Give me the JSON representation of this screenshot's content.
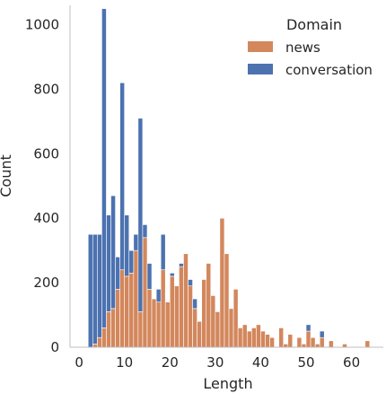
{
  "chart_data": {
    "type": "bar",
    "stacked": true,
    "xlabel": "Length",
    "ylabel": "Count",
    "xlim": [
      -2,
      67
    ],
    "ylim": [
      0,
      1060
    ],
    "xticks": [
      0,
      10,
      20,
      30,
      40,
      50,
      60
    ],
    "yticks": [
      0,
      200,
      400,
      600,
      800,
      1000
    ],
    "bin_width": 1,
    "legend": {
      "title": "Domain",
      "position": "top-right"
    },
    "series": [
      {
        "name": "news",
        "color": "#d3875c",
        "bins": [
          [
            2,
            0
          ],
          [
            3,
            10
          ],
          [
            4,
            30
          ],
          [
            5,
            60
          ],
          [
            6,
            110
          ],
          [
            7,
            120
          ],
          [
            8,
            180
          ],
          [
            9,
            240
          ],
          [
            10,
            220
          ],
          [
            11,
            230
          ],
          [
            12,
            300
          ],
          [
            13,
            110
          ],
          [
            14,
            340
          ],
          [
            15,
            180
          ],
          [
            16,
            150
          ],
          [
            17,
            140
          ],
          [
            18,
            240
          ],
          [
            19,
            140
          ],
          [
            20,
            220
          ],
          [
            21,
            190
          ],
          [
            22,
            250
          ],
          [
            23,
            290
          ],
          [
            24,
            190
          ],
          [
            25,
            120
          ],
          [
            26,
            80
          ],
          [
            27,
            210
          ],
          [
            28,
            260
          ],
          [
            29,
            160
          ],
          [
            30,
            110
          ],
          [
            31,
            400
          ],
          [
            32,
            290
          ],
          [
            33,
            120
          ],
          [
            34,
            180
          ],
          [
            35,
            60
          ],
          [
            36,
            70
          ],
          [
            37,
            50
          ],
          [
            38,
            60
          ],
          [
            39,
            70
          ],
          [
            40,
            50
          ],
          [
            41,
            40
          ],
          [
            42,
            30
          ],
          [
            44,
            60
          ],
          [
            45,
            10
          ],
          [
            46,
            40
          ],
          [
            48,
            30
          ],
          [
            49,
            10
          ],
          [
            50,
            50
          ],
          [
            51,
            30
          ],
          [
            52,
            10
          ],
          [
            53,
            30
          ],
          [
            55,
            20
          ],
          [
            58,
            10
          ],
          [
            63,
            20
          ]
        ]
      },
      {
        "name": "conversation",
        "color": "#4c72b0",
        "bins": [
          [
            2,
            350
          ],
          [
            3,
            340
          ],
          [
            4,
            320
          ],
          [
            5,
            990
          ],
          [
            6,
            300
          ],
          [
            7,
            350
          ],
          [
            8,
            100
          ],
          [
            9,
            580
          ],
          [
            10,
            190
          ],
          [
            11,
            70
          ],
          [
            12,
            50
          ],
          [
            13,
            600
          ],
          [
            14,
            40
          ],
          [
            15,
            80
          ],
          [
            16,
            0
          ],
          [
            17,
            40
          ],
          [
            18,
            110
          ],
          [
            19,
            0
          ],
          [
            20,
            10
          ],
          [
            21,
            0
          ],
          [
            22,
            10
          ],
          [
            23,
            0
          ],
          [
            24,
            20
          ],
          [
            25,
            30
          ],
          [
            50,
            20
          ],
          [
            53,
            20
          ]
        ]
      }
    ]
  }
}
